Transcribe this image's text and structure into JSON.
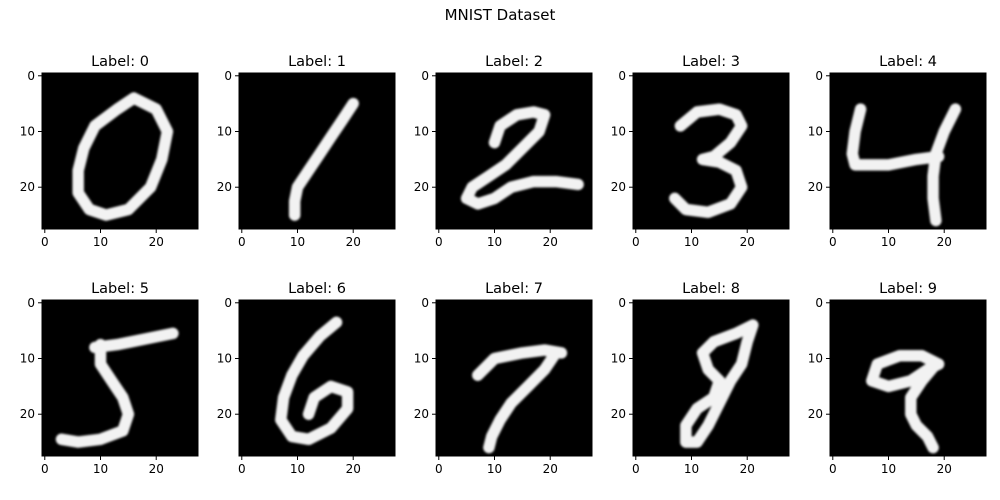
{
  "figure": {
    "suptitle": "MNIST Dataset"
  },
  "chart_data": {
    "type": "image-grid",
    "title": "MNIST Dataset",
    "rows": 2,
    "cols": 5,
    "image_size": [
      28,
      28
    ],
    "colormap": "gray",
    "xticks": [
      0,
      10,
      20
    ],
    "yticks": [
      0,
      10,
      20
    ],
    "xlim": [
      -0.5,
      27.5
    ],
    "ylim": [
      27.5,
      -0.5
    ],
    "grid": false,
    "panels": [
      {
        "title": "Label: 0",
        "label": 0,
        "strokes": [
          [
            [
              13,
              6
            ],
            [
              9,
              9
            ],
            [
              7,
              13
            ],
            [
              6,
              17
            ],
            [
              6,
              21
            ],
            [
              8,
              24
            ],
            [
              11,
              25
            ],
            [
              15,
              24
            ],
            [
              19,
              20
            ],
            [
              21,
              15
            ],
            [
              22,
              10
            ],
            [
              20,
              6
            ],
            [
              16,
              4
            ],
            [
              13,
              6
            ]
          ]
        ]
      },
      {
        "title": "Label: 1",
        "label": 1,
        "strokes": [
          [
            [
              20,
              5
            ],
            [
              18,
              8
            ],
            [
              16,
              11
            ],
            [
              14,
              14
            ],
            [
              12,
              17
            ],
            [
              10,
              20
            ],
            [
              9.5,
              22.5
            ],
            [
              9.5,
              25
            ]
          ]
        ]
      },
      {
        "title": "Label: 2",
        "label": 2,
        "strokes": [
          [
            [
              10,
              12
            ],
            [
              11,
              9
            ],
            [
              14,
              7
            ],
            [
              17,
              6.5
            ],
            [
              19,
              7
            ],
            [
              18,
              10
            ],
            [
              15,
              13
            ],
            [
              12,
              16
            ],
            [
              9,
              18
            ],
            [
              6,
              20
            ],
            [
              5,
              22
            ],
            [
              7,
              23
            ],
            [
              10,
              22
            ],
            [
              13,
              20
            ],
            [
              17,
              19
            ],
            [
              21,
              19
            ],
            [
              25,
              19.5
            ]
          ]
        ]
      },
      {
        "title": "Label: 3",
        "label": 3,
        "strokes": [
          [
            [
              8,
              9
            ],
            [
              11,
              6.5
            ],
            [
              15,
              6
            ],
            [
              18,
              7
            ],
            [
              19,
              9
            ],
            [
              17,
              12
            ],
            [
              14,
              14.5
            ],
            [
              12,
              15
            ],
            [
              15,
              15.5
            ],
            [
              18,
              17
            ],
            [
              19,
              20
            ],
            [
              17,
              23
            ],
            [
              13,
              24.5
            ],
            [
              9,
              24
            ],
            [
              7,
              22
            ]
          ]
        ]
      },
      {
        "title": "Label: 4",
        "label": 4,
        "strokes": [
          [
            [
              5,
              6
            ],
            [
              4,
              10
            ],
            [
              3.5,
              14
            ],
            [
              4,
              16
            ],
            [
              10,
              16
            ],
            [
              15,
              15
            ],
            [
              19,
              14.5
            ]
          ],
          [
            [
              22,
              6
            ],
            [
              20,
              10
            ],
            [
              18.5,
              14
            ],
            [
              18,
              18
            ],
            [
              18,
              22
            ],
            [
              18.5,
              26
            ]
          ]
        ]
      },
      {
        "title": "Label: 5",
        "label": 5,
        "strokes": [
          [
            [
              23,
              5.5
            ],
            [
              18,
              6.5
            ],
            [
              13,
              7.5
            ],
            [
              9,
              8
            ]
          ],
          [
            [
              10,
              7.5
            ],
            [
              10,
              11
            ],
            [
              12,
              14
            ],
            [
              14,
              17
            ],
            [
              15,
              20
            ],
            [
              14,
              23
            ],
            [
              10,
              24.5
            ],
            [
              6,
              25
            ],
            [
              3,
              24.5
            ]
          ]
        ]
      },
      {
        "title": "Label: 6",
        "label": 6,
        "strokes": [
          [
            [
              17,
              3.5
            ],
            [
              14,
              6
            ],
            [
              11,
              9.5
            ],
            [
              9,
              13
            ],
            [
              7.5,
              17
            ],
            [
              7,
              21
            ],
            [
              9,
              24
            ],
            [
              12,
              24.5
            ],
            [
              16,
              22.5
            ],
            [
              19,
              19
            ],
            [
              19,
              16
            ],
            [
              16,
              15
            ],
            [
              13,
              17
            ],
            [
              12,
              20
            ]
          ]
        ]
      },
      {
        "title": "Label: 7",
        "label": 7,
        "strokes": [
          [
            [
              7,
              13
            ],
            [
              10,
              10
            ],
            [
              15,
              9
            ],
            [
              19,
              8.5
            ],
            [
              22,
              9
            ]
          ],
          [
            [
              21,
              9
            ],
            [
              19,
              12
            ],
            [
              16,
              15
            ],
            [
              13,
              18
            ],
            [
              11,
              21
            ],
            [
              9.5,
              24
            ],
            [
              9,
              26
            ]
          ]
        ]
      },
      {
        "title": "Label: 8",
        "label": 8,
        "strokes": [
          [
            [
              21,
              4
            ],
            [
              18,
              5.5
            ],
            [
              14,
              7
            ],
            [
              12,
              9
            ],
            [
              13,
              12
            ],
            [
              15,
              14
            ],
            [
              14,
              17
            ],
            [
              11,
              19
            ],
            [
              9,
              22
            ],
            [
              9,
              25
            ],
            [
              11,
              25
            ],
            [
              13,
              22
            ],
            [
              15,
              18
            ],
            [
              17,
              14
            ],
            [
              19,
              11
            ],
            [
              20,
              7
            ],
            [
              21,
              4
            ]
          ]
        ]
      },
      {
        "title": "Label: 9",
        "label": 9,
        "strokes": [
          [
            [
              19,
              11
            ],
            [
              16,
              9.5
            ],
            [
              12,
              9.5
            ],
            [
              8,
              11
            ],
            [
              7,
              14
            ],
            [
              10,
              15
            ],
            [
              14,
              14
            ],
            [
              17,
              12
            ],
            [
              19,
              11
            ]
          ],
          [
            [
              18.5,
              11
            ],
            [
              16,
              14
            ],
            [
              14,
              17
            ],
            [
              14,
              20
            ],
            [
              15,
              22
            ],
            [
              17,
              24
            ],
            [
              18,
              26
            ]
          ]
        ]
      }
    ]
  }
}
